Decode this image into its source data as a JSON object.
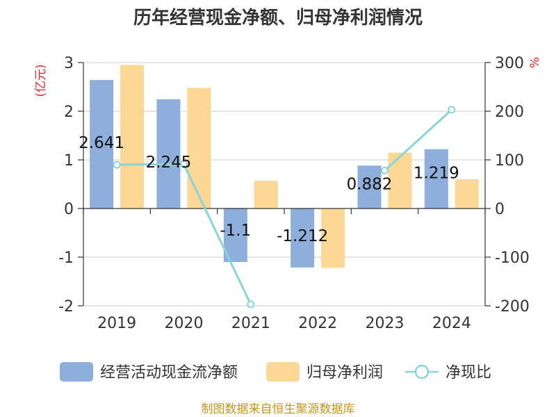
{
  "chart_data": {
    "type": "bar",
    "title": "历年经营现金净额、归母净利润情况",
    "categories": [
      "2019",
      "2020",
      "2021",
      "2022",
      "2023",
      "2024"
    ],
    "series": [
      {
        "name": "经营活动现金流净额",
        "type": "bar",
        "axis": "left",
        "color": "#8eaedc",
        "values": [
          2.641,
          2.245,
          -1.1,
          -1.212,
          0.882,
          1.219
        ],
        "labels": [
          "2.641",
          "2.245",
          "-1.1",
          "-1.212",
          "0.882",
          "1.219"
        ]
      },
      {
        "name": "归母净利润",
        "type": "bar",
        "axis": "left",
        "color": "#fdd795",
        "values": [
          2.95,
          2.48,
          0.57,
          -1.22,
          1.15,
          0.6
        ]
      },
      {
        "name": "净现比",
        "type": "line",
        "axis": "right",
        "color": "#8ad4d8",
        "values": [
          90,
          91,
          -197,
          null,
          78,
          203
        ]
      }
    ],
    "y_left": {
      "unit": "(亿元)",
      "min": -2,
      "max": 3,
      "ticks": [
        "3",
        "2",
        "1",
        "0",
        "-1",
        "-2"
      ]
    },
    "y_right": {
      "unit": "%",
      "min": -200,
      "max": 300,
      "ticks": [
        "300",
        "200",
        "100",
        "0",
        "-100",
        "-200"
      ]
    },
    "grid": true,
    "legend_position": "bottom"
  },
  "source": "制图数据来自恒生聚源数据库"
}
